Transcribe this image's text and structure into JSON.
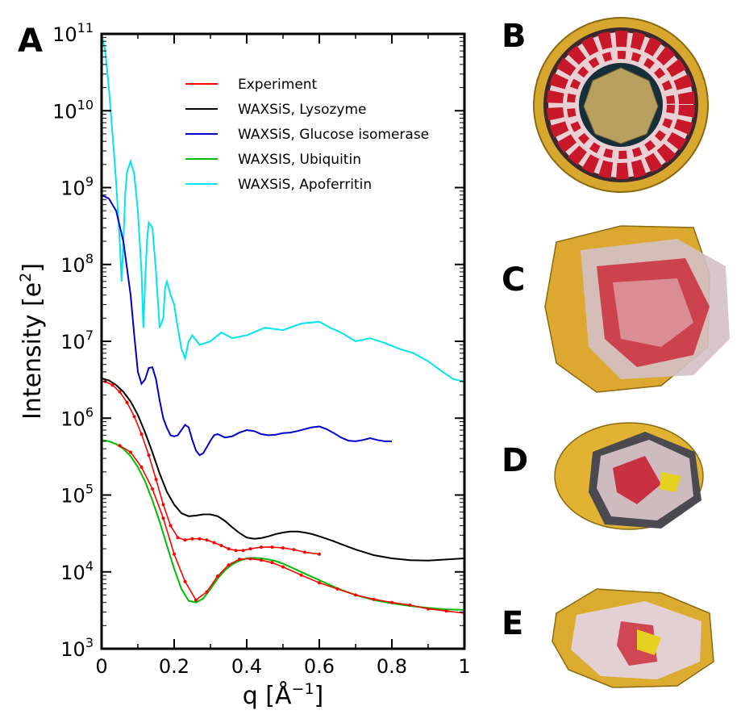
{
  "panels": {
    "chart_letter": "A",
    "images": [
      {
        "letter": "B",
        "colors": {
          "surface": "#d8a82e",
          "protein": "#c8182a",
          "water": "#e8d0d4",
          "inner": "#b8a060"
        }
      },
      {
        "letter": "C",
        "colors": {
          "surface": "#dca830",
          "protein": "#c8182a",
          "water": "#e6ccd2"
        }
      },
      {
        "letter": "D",
        "colors": {
          "surface": "#e2b232",
          "protein": "#c8182a",
          "water": "#dcc8cc"
        }
      },
      {
        "letter": "E",
        "colors": {
          "surface": "#dcac30",
          "protein": "#c8182a",
          "water": "#e2d0d4"
        }
      }
    ]
  },
  "chart_data": {
    "type": "line",
    "xlabel": "q [Å",
    "xlabel_sup": "−1",
    "xlabel_end": "]",
    "ylabel": "Intensity [e",
    "ylabel_sup": "2",
    "ylabel_end": "]",
    "xlim": [
      0,
      1
    ],
    "ylim": [
      1000,
      100000000000
    ],
    "yscale": "log",
    "x_ticks": [
      {
        "value": 0,
        "label": "0"
      },
      {
        "value": 0.2,
        "label": "0.2"
      },
      {
        "value": 0.4,
        "label": "0.4"
      },
      {
        "value": 0.6,
        "label": "0.6"
      },
      {
        "value": 0.8,
        "label": "0.8"
      },
      {
        "value": 1,
        "label": "1"
      }
    ],
    "y_ticks": [
      {
        "value": 1000,
        "base": "10",
        "exp": "3"
      },
      {
        "value": 10000,
        "base": "10",
        "exp": "4"
      },
      {
        "value": 100000,
        "base": "10",
        "exp": "5"
      },
      {
        "value": 1000000,
        "base": "10",
        "exp": "6"
      },
      {
        "value": 10000000,
        "base": "10",
        "exp": "7"
      },
      {
        "value": 100000000,
        "base": "10",
        "exp": "8"
      },
      {
        "value": 1000000000,
        "base": "10",
        "exp": "9"
      },
      {
        "value": 10000000000,
        "base": "10",
        "exp": "10"
      },
      {
        "value": 100000000000,
        "base": "10",
        "exp": "11"
      }
    ],
    "legend_position": "top-right",
    "grid": false,
    "series": [
      {
        "name": "Experiment",
        "color": "#ff0000",
        "samples": [
          {
            "x": [
              0.05,
              0.08,
              0.11,
              0.14,
              0.17,
              0.2,
              0.23,
              0.26,
              0.29,
              0.32,
              0.35,
              0.38,
              0.41,
              0.44,
              0.47,
              0.5,
              0.55,
              0.6,
              0.65,
              0.7,
              0.75,
              0.8,
              0.85,
              0.9,
              0.95,
              1.0
            ],
            "y": [
              440000,
              360000,
              230000,
              120000,
              50000,
              17000,
              7500,
              4300,
              5500,
              8800,
              12300,
              14600,
              14800,
              14200,
              13200,
              11600,
              9100,
              7200,
              6000,
              5000,
              4400,
              4000,
              3700,
              3300,
              3100,
              2900
            ]
          },
          {
            "x": [
              0.01,
              0.03,
              0.05,
              0.07,
              0.09,
              0.11,
              0.13,
              0.15,
              0.17,
              0.19,
              0.21,
              0.23,
              0.25,
              0.27,
              0.29,
              0.31,
              0.33,
              0.35,
              0.37,
              0.39,
              0.41,
              0.44,
              0.47,
              0.5,
              0.53,
              0.56,
              0.6
            ],
            "y": [
              3000000,
              2700000,
              2200000,
              1600000,
              1050000,
              620000,
              330000,
              160000,
              75000,
              40000,
              28000,
              26000,
              27000,
              27000,
              26000,
              24000,
              22000,
              20000,
              19000,
              19000,
              20000,
              21000,
              21000,
              20500,
              19500,
              18000,
              17000
            ]
          }
        ]
      },
      {
        "name": "WAXSiS, Lysozyme",
        "color": "#000000",
        "x": [
          0,
          0.02,
          0.04,
          0.06,
          0.08,
          0.1,
          0.12,
          0.14,
          0.16,
          0.18,
          0.2,
          0.22,
          0.24,
          0.26,
          0.28,
          0.3,
          0.32,
          0.34,
          0.36,
          0.38,
          0.4,
          0.42,
          0.44,
          0.46,
          0.48,
          0.5,
          0.52,
          0.54,
          0.56,
          0.58,
          0.6,
          0.62,
          0.64,
          0.66,
          0.7,
          0.75,
          0.8,
          0.85,
          0.9,
          0.95,
          1.0
        ],
        "y": [
          3300000,
          3100000,
          2700000,
          2200000,
          1650000,
          1100000,
          650000,
          360000,
          190000,
          110000,
          75000,
          58000,
          53000,
          54000,
          56000,
          56000,
          53000,
          46000,
          38000,
          32000,
          28000,
          27000,
          27500,
          29000,
          31000,
          32500,
          33500,
          33500,
          32500,
          31000,
          29000,
          27000,
          25000,
          23000,
          19500,
          16500,
          15000,
          14200,
          14000,
          14500,
          15000
        ]
      },
      {
        "name": "WAXSiS, Glucose isomerase",
        "color": "#0000cc",
        "x": [
          0,
          0.02,
          0.04,
          0.06,
          0.08,
          0.09,
          0.1,
          0.11,
          0.12,
          0.13,
          0.14,
          0.15,
          0.16,
          0.17,
          0.18,
          0.19,
          0.2,
          0.21,
          0.22,
          0.23,
          0.24,
          0.25,
          0.26,
          0.27,
          0.28,
          0.29,
          0.3,
          0.31,
          0.32,
          0.34,
          0.36,
          0.38,
          0.4,
          0.42,
          0.44,
          0.46,
          0.48,
          0.5,
          0.52,
          0.54,
          0.56,
          0.58,
          0.6,
          0.62,
          0.64,
          0.66,
          0.68,
          0.7,
          0.72,
          0.74,
          0.76,
          0.78,
          0.8
        ],
        "y": [
          800000000,
          720000000,
          500000000,
          200000000,
          40000000,
          12000000,
          4000000,
          2800000,
          3200000,
          4500000,
          4600000,
          3200000,
          1700000,
          1000000,
          750000,
          600000,
          580000,
          600000,
          700000,
          820000,
          760000,
          520000,
          380000,
          330000,
          350000,
          420000,
          510000,
          600000,
          620000,
          560000,
          580000,
          650000,
          700000,
          680000,
          620000,
          600000,
          610000,
          640000,
          650000,
          680000,
          720000,
          760000,
          780000,
          720000,
          640000,
          560000,
          510000,
          500000,
          520000,
          550000,
          520000,
          500000,
          500000
        ]
      },
      {
        "name": "WAXSIS, Ubiquitin",
        "color": "#00bb00",
        "x": [
          0,
          0.02,
          0.04,
          0.06,
          0.08,
          0.1,
          0.12,
          0.14,
          0.16,
          0.18,
          0.2,
          0.22,
          0.24,
          0.26,
          0.28,
          0.3,
          0.32,
          0.34,
          0.36,
          0.38,
          0.4,
          0.42,
          0.44,
          0.46,
          0.48,
          0.5,
          0.55,
          0.6,
          0.65,
          0.7,
          0.75,
          0.8,
          0.85,
          0.9,
          0.95,
          1.0
        ],
        "y": [
          520000,
          500000,
          460000,
          400000,
          320000,
          230000,
          150000,
          85000,
          45000,
          22000,
          11000,
          6000,
          4200,
          4000,
          4500,
          6000,
          8200,
          10500,
          12500,
          14000,
          15000,
          15200,
          15000,
          14500,
          13800,
          12800,
          10000,
          7800,
          6100,
          5000,
          4300,
          3900,
          3600,
          3400,
          3250,
          3200
        ]
      },
      {
        "name": "WAXSiS, Apoferritin",
        "color": "#00e5ee",
        "x": [
          0,
          0.01,
          0.02,
          0.03,
          0.04,
          0.05,
          0.055,
          0.06,
          0.065,
          0.07,
          0.08,
          0.09,
          0.1,
          0.11,
          0.115,
          0.12,
          0.125,
          0.13,
          0.14,
          0.15,
          0.16,
          0.17,
          0.175,
          0.18,
          0.19,
          0.2,
          0.21,
          0.22,
          0.23,
          0.24,
          0.25,
          0.27,
          0.3,
          0.33,
          0.36,
          0.4,
          0.45,
          0.5,
          0.55,
          0.6,
          0.63,
          0.66,
          0.7,
          0.74,
          0.78,
          0.82,
          0.86,
          0.9,
          0.94,
          0.97,
          1.0
        ],
        "y": [
          100000000000,
          60000000000,
          20000000000,
          5000000000,
          1200000000,
          200000000,
          60000000,
          200000000,
          800000000,
          1600000000,
          2200000000,
          1500000000,
          500000000,
          80000000,
          15000000,
          60000000,
          200000000,
          350000000,
          300000000,
          80000000,
          15000000,
          20000000,
          50000000,
          60000000,
          40000000,
          30000000,
          15000000,
          8000000,
          6000000,
          10000000,
          12000000,
          9000000,
          10000000,
          13000000,
          11000000,
          12000000,
          15000000,
          14000000,
          17000000,
          18000000,
          15000000,
          13000000,
          10000000,
          11000000,
          9500000,
          8000000,
          7000000,
          5500000,
          4000000,
          3200000,
          3000000
        ]
      }
    ]
  }
}
